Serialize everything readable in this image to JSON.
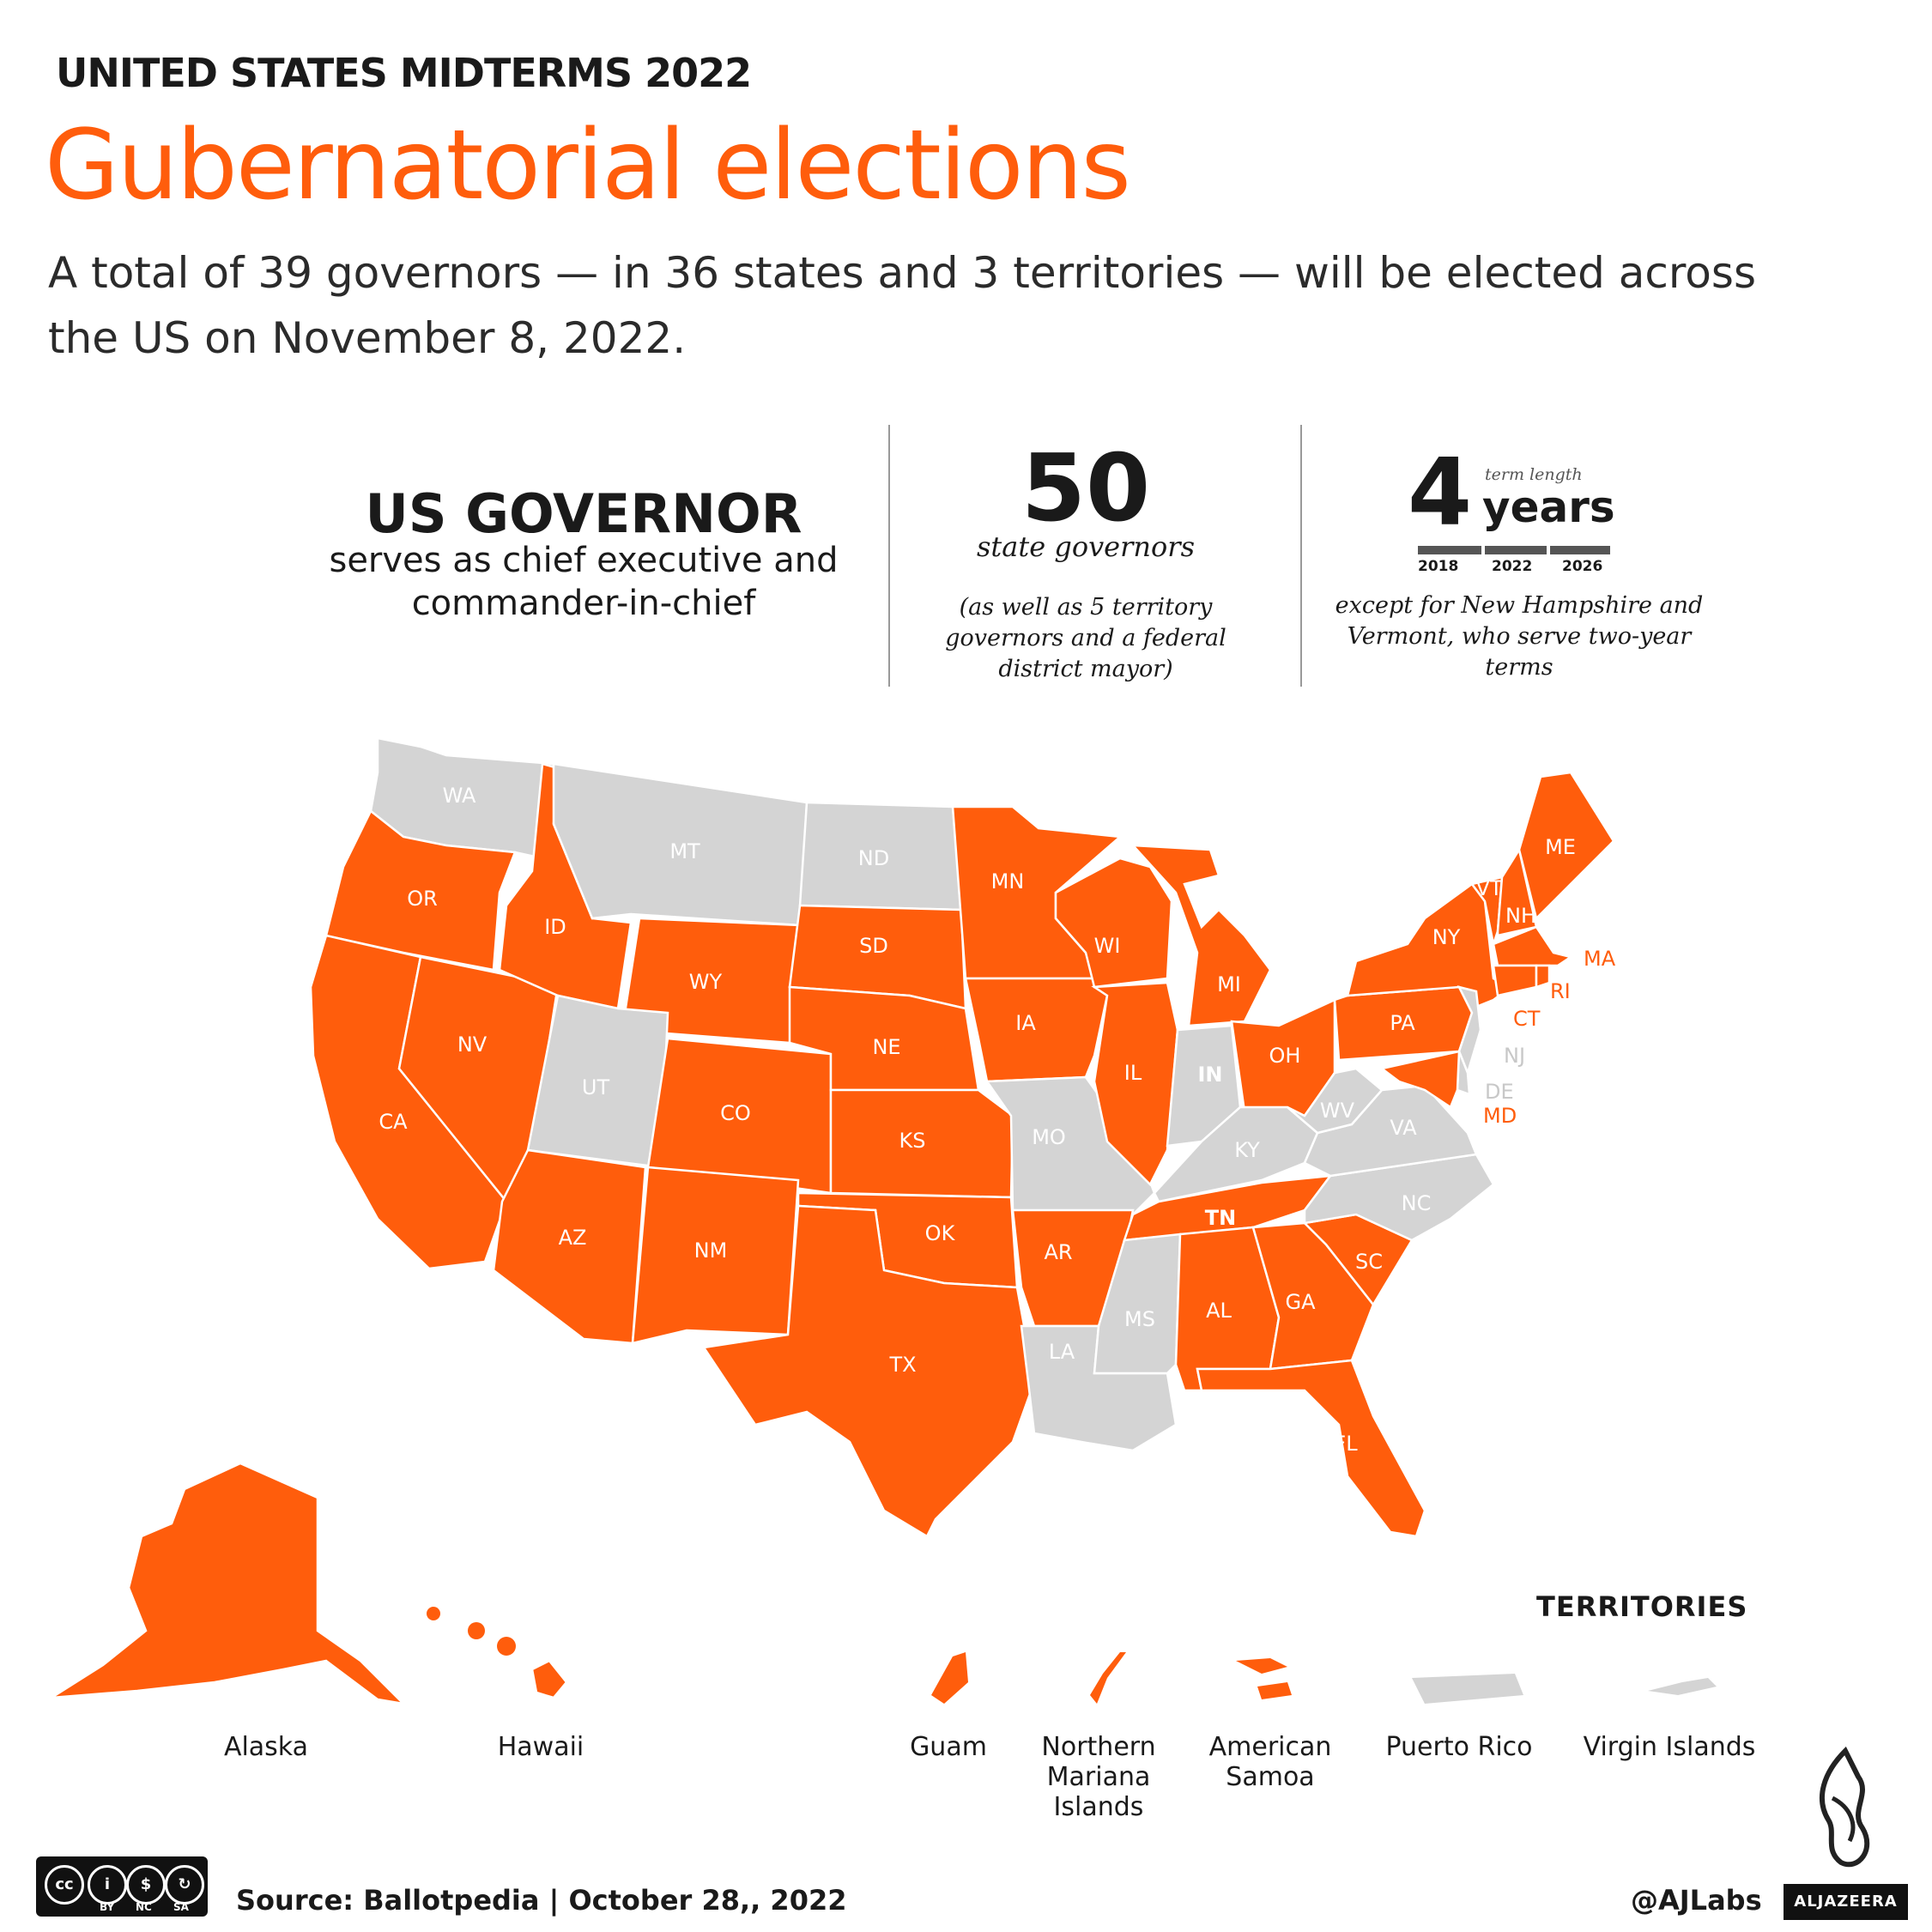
{
  "header": {
    "kicker": "UNITED STATES MIDTERMS 2022",
    "title": "Gubernatorial elections",
    "subtitle": " A total of 39 governors — in 36 states and 3 territories — will be elected across the US on November 8, 2022."
  },
  "facts": {
    "governor_heading": "US GOVERNOR",
    "governor_desc": "serves as chief executive and commander-in-chief",
    "count_value": "50",
    "count_label": "state governors",
    "count_note": "(as well as 5 territory governors and a federal district mayor)",
    "term_value": "4",
    "term_small": "term length",
    "term_unit": "years",
    "term_ticks": [
      "2018",
      "2022",
      "2026"
    ],
    "term_note": "except for New Hampshire and Vermont, who serve two-year terms"
  },
  "legend_colors": {
    "election": "#ff5d0c",
    "no_election": "#d4d4d4"
  },
  "states_election": [
    "OR",
    "ID",
    "CA",
    "NV",
    "AZ",
    "WY",
    "CO",
    "NM",
    "SD",
    "NE",
    "KS",
    "OK",
    "TX",
    "MN",
    "IA",
    "WI",
    "IL",
    "AR",
    "MI",
    "OH",
    "PA",
    "NY",
    "VT",
    "NH",
    "ME",
    "MA",
    "RI",
    "CT",
    "MD",
    "TN",
    "AL",
    "GA",
    "SC",
    "FL",
    "AK",
    "HI"
  ],
  "states_no_election": [
    "WA",
    "MT",
    "ND",
    "UT",
    "MO",
    "IN",
    "KY",
    "WV",
    "VA",
    "NC",
    "MS",
    "LA",
    "NJ",
    "DE"
  ],
  "labels": {
    "WA": "WA",
    "OR": "OR",
    "CA": "CA",
    "ID": "ID",
    "NV": "NV",
    "MT": "MT",
    "WY": "WY",
    "UT": "UT",
    "AZ": "AZ",
    "CO": "CO",
    "NM": "NM",
    "ND": "ND",
    "SD": "SD",
    "NE": "NE",
    "KS": "KS",
    "OK": "OK",
    "TX": "TX",
    "MN": "MN",
    "IA": "IA",
    "MO": "MO",
    "AR": "AR",
    "LA": "LA",
    "WI": "WI",
    "IL": "IL",
    "MS": "MS",
    "AL": "AL",
    "TN": "TN",
    "KY": "KY",
    "IN": "IN",
    "MI": "MI",
    "OH": "OH",
    "GA": "GA",
    "FL": "FL",
    "SC": "SC",
    "NC": "NC",
    "VA": "VA",
    "WV": "WV",
    "PA": "PA",
    "NY": "NY",
    "VT": "VT",
    "NH": "NH",
    "ME": "ME",
    "MA": "MA",
    "RI": "RI",
    "CT": "CT",
    "NJ": "NJ",
    "DE": "DE",
    "MD": "MD"
  },
  "places": {
    "alaska": "Alaska",
    "hawaii": "Hawaii",
    "territories_title": "TERRITORIES",
    "guam": "Guam",
    "nmi": "Northern Mariana Islands",
    "samoa": "American Samoa",
    "pr": "Puerto Rico",
    "vi": "Virgin Islands"
  },
  "footer": {
    "source": "Source:  Ballotpedia     |     October 28,, 2022",
    "handle": "@AJLabs",
    "brand": "ALJAZEERA",
    "license": [
      "BY",
      "NC",
      "SA"
    ]
  }
}
